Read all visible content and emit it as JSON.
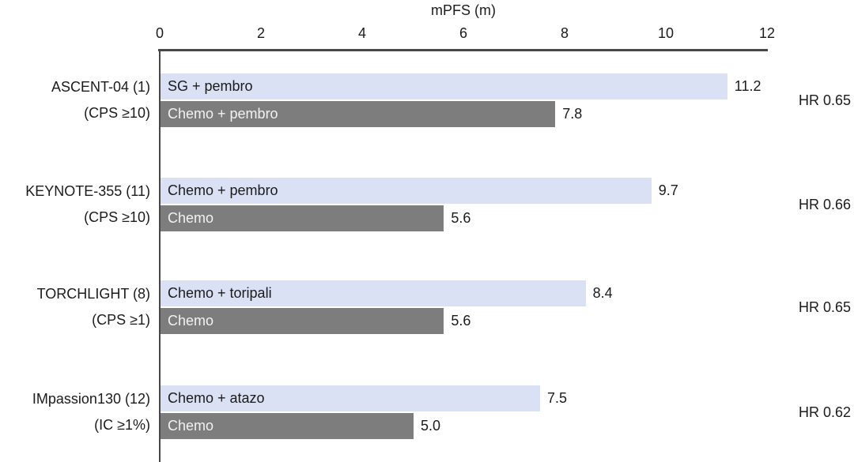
{
  "chart_data": {
    "type": "bar",
    "orientation": "horizontal",
    "title": "mPFS (m)",
    "x_axis": {
      "label": "mPFS (m)",
      "ticks": [
        0,
        2,
        4,
        6,
        8,
        10,
        12
      ],
      "min": 0,
      "max": 12,
      "position": "top"
    },
    "grid": false,
    "bar_colors": {
      "experimental": "#dbe1f4",
      "control": "#7d7d7d"
    },
    "axis_color": "#484848",
    "groups": [
      {
        "trial": "ASCENT-04 (1)",
        "subgroup": "(CPS ≥10)",
        "hr": "HR 0.65",
        "bars": [
          {
            "label": "SG + pembro",
            "value": 11.2,
            "value_label": "11.2",
            "type": "experimental"
          },
          {
            "label": "Chemo + pembro",
            "value": 7.8,
            "value_label": "7.8",
            "type": "control"
          }
        ]
      },
      {
        "trial": "KEYNOTE-355 (11)",
        "subgroup": "(CPS ≥10)",
        "hr": "HR 0.66",
        "bars": [
          {
            "label": "Chemo + pembro",
            "value": 9.7,
            "value_label": "9.7",
            "type": "experimental"
          },
          {
            "label": "Chemo",
            "value": 5.6,
            "value_label": "5.6",
            "type": "control"
          }
        ]
      },
      {
        "trial": "TORCHLIGHT (8)",
        "subgroup": "(CPS ≥1)",
        "hr": "HR 0.65",
        "bars": [
          {
            "label": "Chemo + toripali",
            "value": 8.4,
            "value_label": "8.4",
            "type": "experimental"
          },
          {
            "label": "Chemo",
            "value": 5.6,
            "value_label": "5.6",
            "type": "control"
          }
        ]
      },
      {
        "trial": "IMpassion130 (12)",
        "subgroup": "(IC ≥1%)",
        "hr": "HR 0.62",
        "bars": [
          {
            "label": "Chemo + atazo",
            "value": 7.5,
            "value_label": "7.5",
            "type": "experimental"
          },
          {
            "label": "Chemo",
            "value": 5.0,
            "value_label": "5.0",
            "type": "control"
          }
        ]
      }
    ]
  }
}
